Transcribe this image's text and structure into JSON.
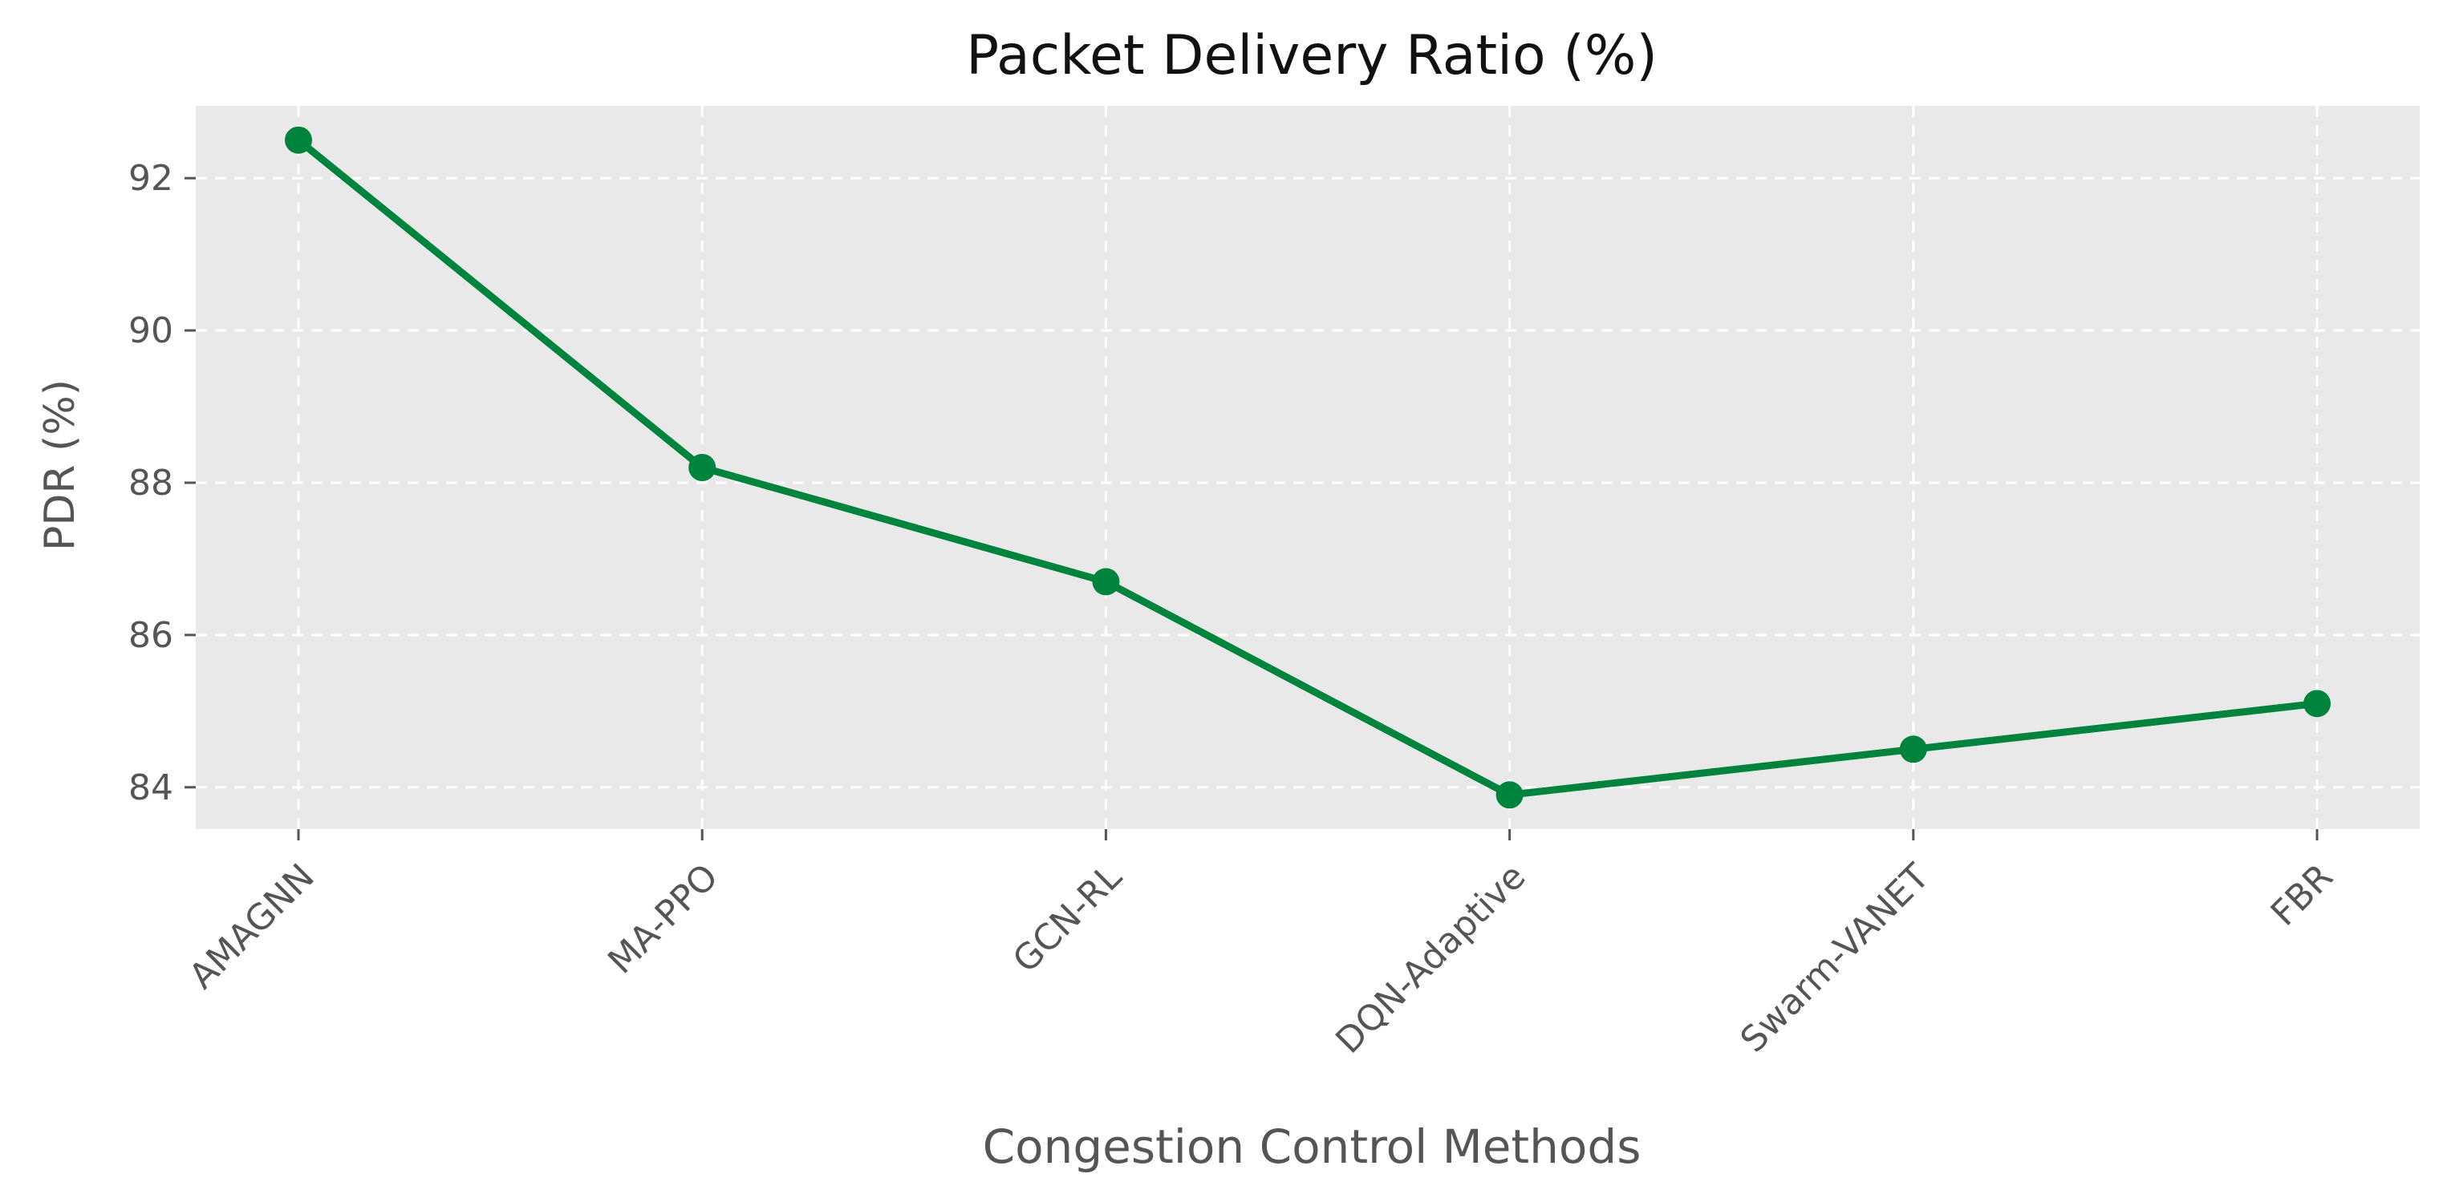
{
  "chart_data": {
    "type": "line",
    "title": "Packet Delivery Ratio (%)",
    "xlabel": "Congestion Control Methods",
    "ylabel": "PDR (%)",
    "categories": [
      "AMAGNN",
      "MA-PPO",
      "GCN-RL",
      "DQN-Adaptive",
      "Swarm-VANET",
      "FBR"
    ],
    "series": [
      {
        "values": [
          92.5,
          88.2,
          86.7,
          83.9,
          84.5,
          85.1
        ]
      }
    ],
    "ylim": [
      83.45,
      92.95
    ],
    "yticks": [
      84,
      86,
      88,
      90,
      92
    ],
    "grid": true,
    "grid_style": "dashed",
    "markers": true,
    "legend": "none",
    "colors": {
      "line": "#00843d",
      "plot_background": "#e8e9e8",
      "grid": "#ffffff",
      "text": "#555555",
      "title": "#111111"
    }
  }
}
